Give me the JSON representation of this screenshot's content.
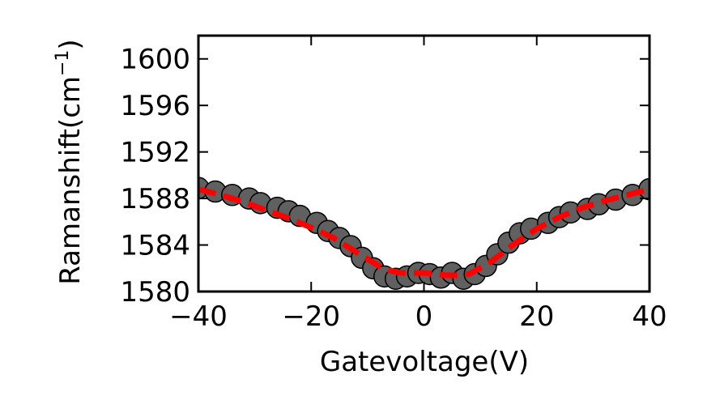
{
  "chart_data": {
    "type": "scatter",
    "xlabel": "Gatevoltage(V)",
    "ylabel": "Ramanshift(cm",
    "ylabel_sup": "−1",
    "ylabel_end": ")",
    "xlim": [
      -40,
      40
    ],
    "ylim": [
      1580,
      1602
    ],
    "xticks": [
      -40,
      -20,
      0,
      20,
      40
    ],
    "xtick_labels": [
      "−40",
      "−20",
      "0",
      "20",
      "40"
    ],
    "yticks": [
      1580,
      1584,
      1588,
      1592,
      1596,
      1600
    ],
    "ytick_labels": [
      "1580",
      "1584",
      "1588",
      "1592",
      "1596",
      "1600"
    ],
    "grid": false,
    "series": [
      {
        "kind": "markers",
        "marker_color": "#606060",
        "edge_color": "#000000",
        "x": [
          -40,
          -37,
          -34,
          -31,
          -29,
          -26,
          -24,
          -22,
          -19,
          -17,
          -15,
          -13,
          -11,
          -9,
          -7,
          -5,
          -3,
          -1,
          1,
          3,
          5,
          7,
          9,
          11,
          13,
          15,
          17,
          19,
          22,
          24,
          26,
          29,
          31,
          34,
          37,
          40
        ],
        "y": [
          1588.9,
          1588.6,
          1588.3,
          1588.0,
          1587.6,
          1587.2,
          1586.9,
          1586.5,
          1585.9,
          1585.2,
          1584.6,
          1583.9,
          1582.9,
          1582.0,
          1581.3,
          1581.1,
          1581.3,
          1581.6,
          1581.5,
          1581.2,
          1581.6,
          1581.1,
          1581.5,
          1582.2,
          1583.2,
          1584.2,
          1585.0,
          1585.4,
          1585.9,
          1586.4,
          1586.8,
          1587.1,
          1587.5,
          1587.9,
          1588.3,
          1588.8
        ]
      },
      {
        "kind": "dashed-line",
        "color": "#ff0000",
        "x": [
          -40,
          -36,
          -32,
          -28,
          -24,
          -20,
          -16,
          -12,
          -8,
          -6,
          -4,
          -2,
          0,
          2,
          4,
          6,
          8,
          12,
          16,
          20,
          24,
          28,
          32,
          36,
          40
        ],
        "y": [
          1588.8,
          1588.3,
          1587.7,
          1587.0,
          1586.3,
          1585.5,
          1584.6,
          1583.4,
          1582.2,
          1581.8,
          1581.6,
          1581.6,
          1581.6,
          1581.5,
          1581.4,
          1581.4,
          1581.5,
          1582.6,
          1584.1,
          1585.4,
          1586.4,
          1587.2,
          1587.8,
          1588.3,
          1588.8
        ]
      }
    ]
  }
}
